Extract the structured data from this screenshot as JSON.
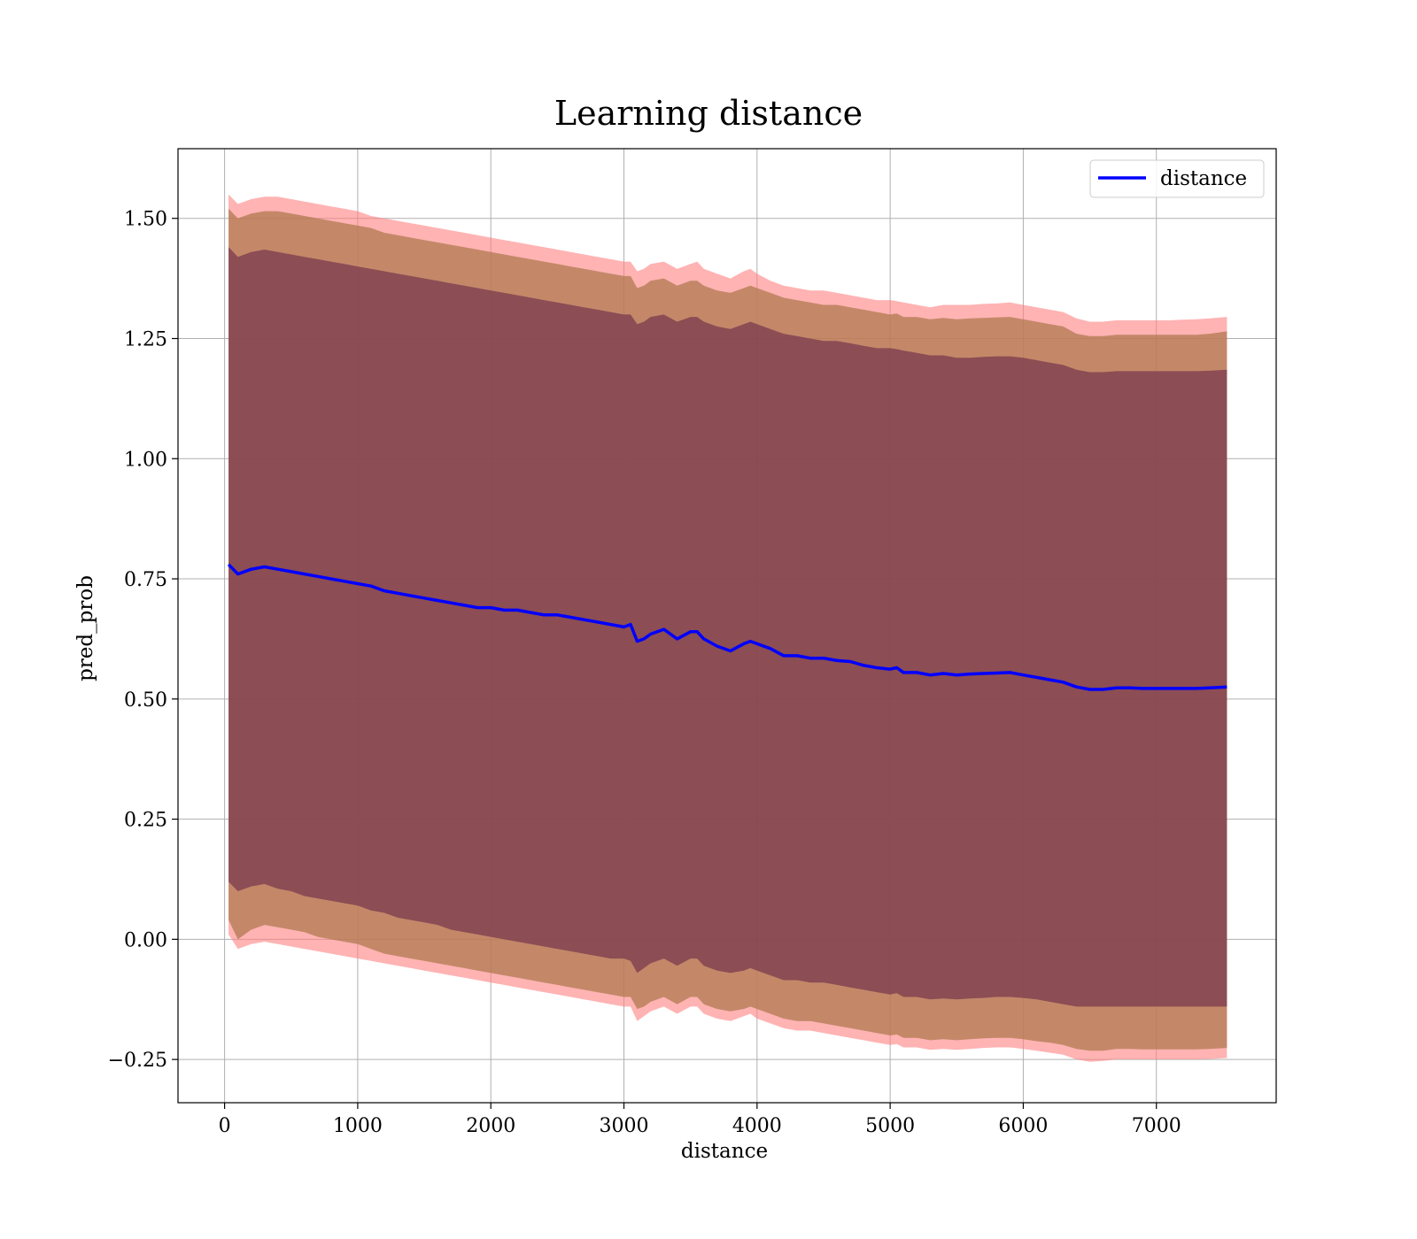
{
  "chart_data": {
    "type": "line",
    "title": "Learning distance",
    "xlabel": "distance",
    "ylabel": "pred_prob",
    "xlim": [
      -350,
      7900
    ],
    "ylim": [
      -0.34,
      1.645
    ],
    "x_ticks": [
      0,
      1000,
      2000,
      3000,
      4000,
      5000,
      6000,
      7000
    ],
    "x_tick_labels": [
      "0",
      "1000",
      "2000",
      "3000",
      "4000",
      "5000",
      "6000",
      "7000"
    ],
    "y_ticks": [
      -0.25,
      0.0,
      0.25,
      0.5,
      0.75,
      1.0,
      1.25,
      1.5
    ],
    "y_tick_labels": [
      "−0.25",
      "0.00",
      "0.25",
      "0.50",
      "0.75",
      "1.00",
      "1.25",
      "1.50"
    ],
    "grid": true,
    "legend_position": "upper right",
    "legend": [
      "distance"
    ],
    "colors": {
      "line": "#0000ff",
      "band_outer": "#ff8080",
      "band_middle": "#b07a50",
      "band_inner": "#6e2e4a",
      "grid": "#b0b0b0"
    },
    "x": [
      30,
      100,
      200,
      300,
      400,
      500,
      600,
      700,
      800,
      900,
      1000,
      1100,
      1200,
      1300,
      1400,
      1500,
      1600,
      1700,
      1800,
      1900,
      2000,
      2100,
      2200,
      2300,
      2400,
      2500,
      2600,
      2700,
      2800,
      2900,
      3000,
      3050,
      3100,
      3150,
      3200,
      3300,
      3400,
      3500,
      3550,
      3600,
      3700,
      3800,
      3900,
      3950,
      4000,
      4100,
      4200,
      4300,
      4400,
      4500,
      4600,
      4700,
      4800,
      4900,
      5000,
      5050,
      5100,
      5200,
      5300,
      5400,
      5500,
      5600,
      5700,
      5800,
      5900,
      6000,
      6100,
      6200,
      6300,
      6400,
      6500,
      6600,
      6700,
      6800,
      6900,
      7000,
      7100,
      7200,
      7300,
      7400,
      7530
    ],
    "series": [
      {
        "name": "distance",
        "values": [
          0.78,
          0.76,
          0.77,
          0.775,
          0.77,
          0.765,
          0.76,
          0.755,
          0.75,
          0.745,
          0.74,
          0.735,
          0.725,
          0.72,
          0.715,
          0.71,
          0.705,
          0.7,
          0.695,
          0.69,
          0.69,
          0.685,
          0.685,
          0.68,
          0.675,
          0.675,
          0.67,
          0.665,
          0.66,
          0.655,
          0.65,
          0.655,
          0.62,
          0.625,
          0.635,
          0.645,
          0.625,
          0.64,
          0.64,
          0.625,
          0.61,
          0.6,
          0.615,
          0.62,
          0.615,
          0.605,
          0.59,
          0.59,
          0.585,
          0.585,
          0.58,
          0.578,
          0.57,
          0.565,
          0.562,
          0.565,
          0.555,
          0.555,
          0.55,
          0.553,
          0.55,
          0.552,
          0.553,
          0.554,
          0.555,
          0.55,
          0.545,
          0.54,
          0.535,
          0.525,
          0.52,
          0.52,
          0.523,
          0.523,
          0.522,
          0.522,
          0.522,
          0.522,
          0.522,
          0.523,
          0.525
        ]
      },
      {
        "name": "",
        "band": "inner",
        "lower": [
          0.12,
          0.1,
          0.11,
          0.115,
          0.105,
          0.1,
          0.09,
          0.085,
          0.08,
          0.075,
          0.07,
          0.06,
          0.055,
          0.045,
          0.04,
          0.035,
          0.03,
          0.02,
          0.015,
          0.01,
          0.005,
          0.0,
          -0.005,
          -0.01,
          -0.015,
          -0.02,
          -0.025,
          -0.03,
          -0.035,
          -0.04,
          -0.04,
          -0.045,
          -0.07,
          -0.06,
          -0.05,
          -0.04,
          -0.055,
          -0.04,
          -0.04,
          -0.055,
          -0.065,
          -0.07,
          -0.065,
          -0.06,
          -0.065,
          -0.075,
          -0.085,
          -0.085,
          -0.09,
          -0.09,
          -0.095,
          -0.1,
          -0.105,
          -0.11,
          -0.115,
          -0.112,
          -0.12,
          -0.12,
          -0.125,
          -0.123,
          -0.125,
          -0.123,
          -0.122,
          -0.12,
          -0.12,
          -0.122,
          -0.125,
          -0.13,
          -0.135,
          -0.14,
          -0.14,
          -0.14,
          -0.14,
          -0.14,
          -0.14,
          -0.14,
          -0.14,
          -0.14,
          -0.14,
          -0.14,
          -0.14
        ],
        "upper": [
          1.44,
          1.42,
          1.43,
          1.435,
          1.43,
          1.425,
          1.42,
          1.415,
          1.41,
          1.405,
          1.4,
          1.395,
          1.39,
          1.385,
          1.38,
          1.375,
          1.37,
          1.365,
          1.36,
          1.355,
          1.35,
          1.345,
          1.34,
          1.335,
          1.33,
          1.325,
          1.32,
          1.315,
          1.31,
          1.305,
          1.3,
          1.3,
          1.28,
          1.285,
          1.295,
          1.3,
          1.285,
          1.295,
          1.295,
          1.285,
          1.275,
          1.27,
          1.28,
          1.285,
          1.28,
          1.27,
          1.26,
          1.255,
          1.25,
          1.245,
          1.245,
          1.24,
          1.235,
          1.23,
          1.23,
          1.228,
          1.225,
          1.22,
          1.215,
          1.215,
          1.21,
          1.21,
          1.212,
          1.213,
          1.213,
          1.21,
          1.205,
          1.2,
          1.195,
          1.185,
          1.18,
          1.18,
          1.182,
          1.182,
          1.182,
          1.182,
          1.182,
          1.182,
          1.182,
          1.183,
          1.185
        ]
      },
      {
        "name": "",
        "band": "middle",
        "lower": [
          0.04,
          0.0,
          0.02,
          0.03,
          0.025,
          0.02,
          0.015,
          0.005,
          0.0,
          -0.005,
          -0.01,
          -0.02,
          -0.03,
          -0.035,
          -0.04,
          -0.045,
          -0.05,
          -0.055,
          -0.06,
          -0.065,
          -0.07,
          -0.075,
          -0.08,
          -0.085,
          -0.09,
          -0.095,
          -0.1,
          -0.105,
          -0.11,
          -0.115,
          -0.12,
          -0.12,
          -0.145,
          -0.14,
          -0.13,
          -0.12,
          -0.135,
          -0.12,
          -0.12,
          -0.135,
          -0.145,
          -0.15,
          -0.145,
          -0.14,
          -0.145,
          -0.155,
          -0.165,
          -0.17,
          -0.17,
          -0.175,
          -0.18,
          -0.185,
          -0.19,
          -0.195,
          -0.2,
          -0.198,
          -0.205,
          -0.205,
          -0.21,
          -0.208,
          -0.21,
          -0.208,
          -0.206,
          -0.205,
          -0.205,
          -0.208,
          -0.212,
          -0.215,
          -0.22,
          -0.228,
          -0.232,
          -0.232,
          -0.228,
          -0.228,
          -0.229,
          -0.229,
          -0.229,
          -0.229,
          -0.229,
          -0.228,
          -0.226
        ],
        "upper": [
          1.52,
          1.5,
          1.51,
          1.515,
          1.515,
          1.51,
          1.505,
          1.5,
          1.495,
          1.49,
          1.485,
          1.48,
          1.47,
          1.465,
          1.46,
          1.455,
          1.45,
          1.445,
          1.44,
          1.435,
          1.43,
          1.425,
          1.42,
          1.415,
          1.41,
          1.405,
          1.4,
          1.395,
          1.39,
          1.385,
          1.38,
          1.38,
          1.355,
          1.36,
          1.37,
          1.375,
          1.36,
          1.37,
          1.37,
          1.36,
          1.35,
          1.345,
          1.355,
          1.36,
          1.355,
          1.345,
          1.335,
          1.33,
          1.325,
          1.32,
          1.32,
          1.315,
          1.31,
          1.305,
          1.3,
          1.302,
          1.295,
          1.295,
          1.29,
          1.293,
          1.29,
          1.292,
          1.293,
          1.294,
          1.295,
          1.29,
          1.285,
          1.28,
          1.275,
          1.26,
          1.255,
          1.255,
          1.258,
          1.258,
          1.258,
          1.258,
          1.258,
          1.258,
          1.258,
          1.26,
          1.265
        ]
      },
      {
        "name": "",
        "band": "outer",
        "lower": [
          0.01,
          -0.02,
          -0.01,
          -0.005,
          -0.01,
          -0.015,
          -0.02,
          -0.025,
          -0.03,
          -0.035,
          -0.04,
          -0.045,
          -0.05,
          -0.055,
          -0.06,
          -0.065,
          -0.07,
          -0.075,
          -0.08,
          -0.085,
          -0.09,
          -0.095,
          -0.1,
          -0.105,
          -0.11,
          -0.115,
          -0.12,
          -0.125,
          -0.13,
          -0.135,
          -0.14,
          -0.14,
          -0.17,
          -0.16,
          -0.15,
          -0.14,
          -0.155,
          -0.14,
          -0.14,
          -0.155,
          -0.165,
          -0.17,
          -0.16,
          -0.155,
          -0.165,
          -0.175,
          -0.185,
          -0.19,
          -0.19,
          -0.195,
          -0.2,
          -0.205,
          -0.21,
          -0.215,
          -0.22,
          -0.218,
          -0.225,
          -0.225,
          -0.23,
          -0.228,
          -0.23,
          -0.228,
          -0.226,
          -0.225,
          -0.225,
          -0.228,
          -0.232,
          -0.236,
          -0.24,
          -0.25,
          -0.255,
          -0.253,
          -0.25,
          -0.25,
          -0.25,
          -0.25,
          -0.25,
          -0.25,
          -0.25,
          -0.249,
          -0.247
        ],
        "upper": [
          1.55,
          1.53,
          1.54,
          1.545,
          1.545,
          1.54,
          1.535,
          1.53,
          1.525,
          1.52,
          1.515,
          1.505,
          1.5,
          1.495,
          1.49,
          1.485,
          1.48,
          1.475,
          1.47,
          1.465,
          1.46,
          1.455,
          1.45,
          1.445,
          1.44,
          1.435,
          1.43,
          1.425,
          1.42,
          1.415,
          1.41,
          1.41,
          1.39,
          1.395,
          1.405,
          1.41,
          1.395,
          1.405,
          1.41,
          1.395,
          1.385,
          1.375,
          1.39,
          1.395,
          1.385,
          1.37,
          1.36,
          1.355,
          1.35,
          1.35,
          1.345,
          1.34,
          1.335,
          1.33,
          1.33,
          1.328,
          1.325,
          1.32,
          1.315,
          1.32,
          1.32,
          1.32,
          1.322,
          1.323,
          1.325,
          1.32,
          1.315,
          1.31,
          1.305,
          1.292,
          1.285,
          1.285,
          1.288,
          1.288,
          1.288,
          1.288,
          1.288,
          1.289,
          1.29,
          1.292,
          1.295
        ]
      }
    ]
  }
}
